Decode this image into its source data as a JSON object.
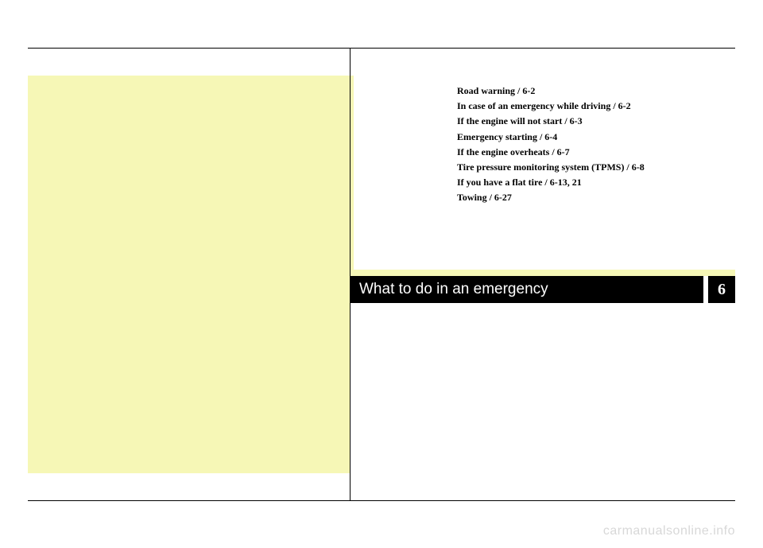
{
  "chapter": {
    "title": "What to do in an emergency",
    "number": "6"
  },
  "toc": [
    "Road warning / 6-2",
    "In case of an emergency while driving / 6-2",
    "If the engine will not start / 6-3",
    "Emergency starting / 6-4",
    "If the engine overheats / 6-7",
    "Tire pressure monitoring system (TPMS) / 6-8",
    "If you have a flat tire / 6-13, 21",
    "Towing / 6-27"
  ],
  "watermark": "carmanualsonline.info",
  "colors": {
    "yellow_bg": "#f6f7b6",
    "black": "#000000",
    "white": "#ffffff",
    "watermark": "#d8d8d8"
  }
}
